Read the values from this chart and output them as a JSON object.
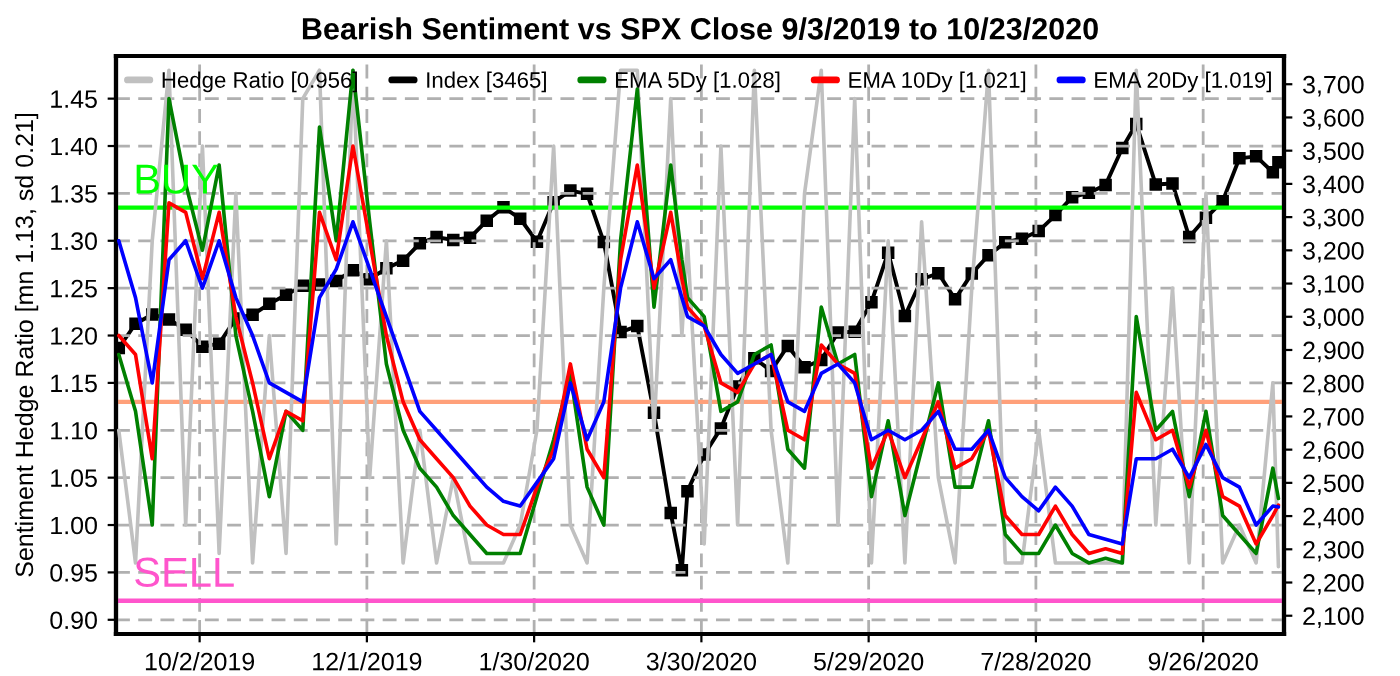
{
  "chart_data": {
    "type": "line",
    "title": "Bearish Sentiment vs SPX Close 9/3/2019 to 10/23/2020",
    "ylabel": "Sentiment Hedge Ratio [mn 1.13, sd 0.21]",
    "x": [
      "2019-09-03",
      "2019-09-09",
      "2019-09-15",
      "2019-09-21",
      "2019-09-27",
      "2019-10-03",
      "2019-10-09",
      "2019-10-15",
      "2019-10-21",
      "2019-10-27",
      "2019-11-02",
      "2019-11-08",
      "2019-11-14",
      "2019-11-20",
      "2019-11-26",
      "2019-12-02",
      "2019-12-08",
      "2019-12-14",
      "2019-12-20",
      "2019-12-26",
      "2020-01-01",
      "2020-01-07",
      "2020-01-13",
      "2020-01-19",
      "2020-01-25",
      "2020-01-31",
      "2020-02-06",
      "2020-02-12",
      "2020-02-18",
      "2020-02-24",
      "2020-03-01",
      "2020-03-07",
      "2020-03-13",
      "2020-03-19",
      "2020-03-23",
      "2020-03-25",
      "2020-03-31",
      "2020-04-06",
      "2020-04-12",
      "2020-04-18",
      "2020-04-24",
      "2020-04-30",
      "2020-05-06",
      "2020-05-12",
      "2020-05-18",
      "2020-05-24",
      "2020-05-30",
      "2020-06-05",
      "2020-06-11",
      "2020-06-17",
      "2020-06-23",
      "2020-06-29",
      "2020-07-05",
      "2020-07-11",
      "2020-07-17",
      "2020-07-23",
      "2020-07-29",
      "2020-08-04",
      "2020-08-10",
      "2020-08-16",
      "2020-08-22",
      "2020-08-28",
      "2020-09-02",
      "2020-09-09",
      "2020-09-15",
      "2020-09-21",
      "2020-09-27",
      "2020-10-03",
      "2020-10-09",
      "2020-10-15",
      "2020-10-21",
      "2020-10-23"
    ],
    "series": [
      {
        "name": "Hedge Ratio [0.956]",
        "color": "#c0c0c0",
        "values": [
          1.1,
          0.96,
          1.3,
          1.48,
          1.0,
          1.4,
          0.97,
          1.35,
          0.96,
          1.2,
          0.97,
          1.45,
          1.48,
          0.98,
          1.48,
          1.05,
          1.3,
          0.96,
          1.1,
          0.96,
          1.05,
          0.96,
          0.96,
          0.96,
          1.0,
          1.1,
          1.4,
          1.0,
          0.96,
          1.25,
          1.48,
          1.48,
          1.1,
          1.45,
          1.2,
          1.3,
          0.98,
          1.4,
          1.0,
          1.48,
          1.1,
          0.96,
          1.35,
          1.48,
          1.0,
          1.45,
          0.96,
          1.3,
          0.96,
          1.32,
          1.05,
          0.96,
          1.25,
          1.48,
          0.96,
          0.96,
          1.1,
          0.96,
          0.96,
          0.96,
          0.96,
          0.96,
          1.48,
          1.0,
          1.25,
          0.96,
          1.35,
          0.96,
          1.0,
          0.96,
          1.15,
          0.956
        ]
      },
      {
        "name": "Index [3465]",
        "color": "#000000",
        "axis": "y2",
        "marker": "square",
        "values": [
          2906,
          2979,
          3007,
          2992,
          2961,
          2910,
          2919,
          2995,
          3006,
          3039,
          3066,
          3093,
          3097,
          3108,
          3140,
          3113,
          3146,
          3169,
          3221,
          3240,
          3231,
          3238,
          3289,
          3330,
          3295,
          3226,
          3345,
          3380,
          3370,
          3225,
          2954,
          2972,
          2711,
          2409,
          2237,
          2475,
          2585,
          2664,
          2790,
          2875,
          2837,
          2912,
          2848,
          2870,
          2953,
          2955,
          3044,
          3193,
          3002,
          3113,
          3131,
          3053,
          3130,
          3185,
          3224,
          3235,
          3258,
          3306,
          3360,
          3373,
          3397,
          3508,
          3580,
          3398,
          3401,
          3240,
          3298,
          3348,
          3477,
          3483,
          3435,
          3465
        ]
      },
      {
        "name": "EMA 5Dy [1.028]",
        "color": "#008000",
        "values": [
          1.18,
          1.12,
          1.0,
          1.45,
          1.36,
          1.29,
          1.38,
          1.2,
          1.12,
          1.03,
          1.12,
          1.1,
          1.42,
          1.3,
          1.48,
          1.32,
          1.17,
          1.1,
          1.06,
          1.04,
          1.01,
          0.99,
          0.97,
          0.97,
          0.97,
          1.03,
          1.09,
          1.16,
          1.04,
          1.0,
          1.3,
          1.46,
          1.23,
          1.38,
          1.28,
          1.24,
          1.22,
          1.12,
          1.13,
          1.18,
          1.19,
          1.08,
          1.06,
          1.23,
          1.17,
          1.18,
          1.03,
          1.11,
          1.01,
          1.08,
          1.15,
          1.04,
          1.04,
          1.11,
          0.99,
          0.97,
          0.97,
          1.0,
          0.97,
          0.96,
          0.965,
          0.96,
          1.22,
          1.1,
          1.12,
          1.03,
          1.12,
          1.01,
          0.99,
          0.97,
          1.06,
          1.028
        ]
      },
      {
        "name": "EMA 10Dy [1.021]",
        "color": "#ff0000",
        "values": [
          1.2,
          1.18,
          1.07,
          1.34,
          1.33,
          1.26,
          1.33,
          1.22,
          1.15,
          1.07,
          1.12,
          1.11,
          1.33,
          1.28,
          1.4,
          1.3,
          1.2,
          1.13,
          1.09,
          1.07,
          1.05,
          1.02,
          1.0,
          0.99,
          0.99,
          1.04,
          1.08,
          1.17,
          1.08,
          1.05,
          1.28,
          1.38,
          1.25,
          1.33,
          1.26,
          1.23,
          1.21,
          1.15,
          1.14,
          1.17,
          1.18,
          1.1,
          1.09,
          1.19,
          1.17,
          1.16,
          1.06,
          1.1,
          1.05,
          1.09,
          1.13,
          1.06,
          1.07,
          1.1,
          1.01,
          0.99,
          0.99,
          1.02,
          0.99,
          0.97,
          0.975,
          0.97,
          1.14,
          1.09,
          1.1,
          1.04,
          1.1,
          1.03,
          1.02,
          0.98,
          1.01,
          1.021
        ]
      },
      {
        "name": "EMA 20Dy [1.019]",
        "color": "#0000ff",
        "values": [
          1.3,
          1.24,
          1.15,
          1.28,
          1.3,
          1.25,
          1.3,
          1.24,
          1.2,
          1.15,
          1.14,
          1.13,
          1.24,
          1.27,
          1.32,
          1.27,
          1.22,
          1.17,
          1.12,
          1.1,
          1.08,
          1.06,
          1.04,
          1.025,
          1.02,
          1.045,
          1.07,
          1.15,
          1.09,
          1.13,
          1.25,
          1.32,
          1.26,
          1.28,
          1.24,
          1.22,
          1.21,
          1.18,
          1.16,
          1.17,
          1.18,
          1.13,
          1.12,
          1.16,
          1.17,
          1.15,
          1.09,
          1.1,
          1.09,
          1.1,
          1.12,
          1.08,
          1.08,
          1.1,
          1.05,
          1.03,
          1.015,
          1.04,
          1.02,
          0.99,
          0.985,
          0.98,
          1.07,
          1.07,
          1.08,
          1.05,
          1.085,
          1.05,
          1.04,
          1.0,
          1.02,
          1.019
        ]
      }
    ],
    "xlim": [
      "2019-09-02",
      "2020-10-25"
    ],
    "xticks": [
      {
        "value": "2019-10-02",
        "label": "10/2/2019"
      },
      {
        "value": "2019-12-01",
        "label": "12/1/2019"
      },
      {
        "value": "2020-01-30",
        "label": "1/30/2020"
      },
      {
        "value": "2020-03-30",
        "label": "3/30/2020"
      },
      {
        "value": "2020-05-29",
        "label": "5/29/2020"
      },
      {
        "value": "2020-07-28",
        "label": "7/28/2020"
      },
      {
        "value": "2020-09-26",
        "label": "9/26/2020"
      }
    ],
    "ylim": [
      0.885,
      1.495
    ],
    "yticks": [
      {
        "value": 0.9,
        "label": "0.90"
      },
      {
        "value": 0.95,
        "label": "0.95"
      },
      {
        "value": 1.0,
        "label": "1.00"
      },
      {
        "value": 1.05,
        "label": "1.05"
      },
      {
        "value": 1.1,
        "label": "1.10"
      },
      {
        "value": 1.15,
        "label": "1.15"
      },
      {
        "value": 1.2,
        "label": "1.20"
      },
      {
        "value": 1.25,
        "label": "1.25"
      },
      {
        "value": 1.3,
        "label": "1.30"
      },
      {
        "value": 1.35,
        "label": "1.35"
      },
      {
        "value": 1.4,
        "label": "1.40"
      },
      {
        "value": 1.45,
        "label": "1.45"
      }
    ],
    "y2lim": [
      2045,
      3785
    ],
    "y2ticks": [
      {
        "value": 2100,
        "label": "2,100"
      },
      {
        "value": 2200,
        "label": "2,200"
      },
      {
        "value": 2300,
        "label": "2,300"
      },
      {
        "value": 2400,
        "label": "2,400"
      },
      {
        "value": 2500,
        "label": "2,500"
      },
      {
        "value": 2600,
        "label": "2,600"
      },
      {
        "value": 2700,
        "label": "2,700"
      },
      {
        "value": 2800,
        "label": "2,800"
      },
      {
        "value": 2900,
        "label": "2,900"
      },
      {
        "value": 3000,
        "label": "3,000"
      },
      {
        "value": 3100,
        "label": "3,100"
      },
      {
        "value": 3200,
        "label": "3,200"
      },
      {
        "value": 3300,
        "label": "3,300"
      },
      {
        "value": 3400,
        "label": "3,400"
      },
      {
        "value": 3500,
        "label": "3,500"
      },
      {
        "value": 3600,
        "label": "3,600"
      },
      {
        "value": 3700,
        "label": "3,700"
      }
    ],
    "ref_lines": [
      {
        "axis": "y",
        "value": 1.335,
        "label": "BUY",
        "color": "#00ff00"
      },
      {
        "axis": "y",
        "value": 1.13,
        "label": null,
        "color": "#ffa07a"
      },
      {
        "axis": "y",
        "value": 0.92,
        "label": "SELL",
        "color": "#ff55cc"
      }
    ],
    "grid": true,
    "legend": "top",
    "line_style": "solid"
  }
}
